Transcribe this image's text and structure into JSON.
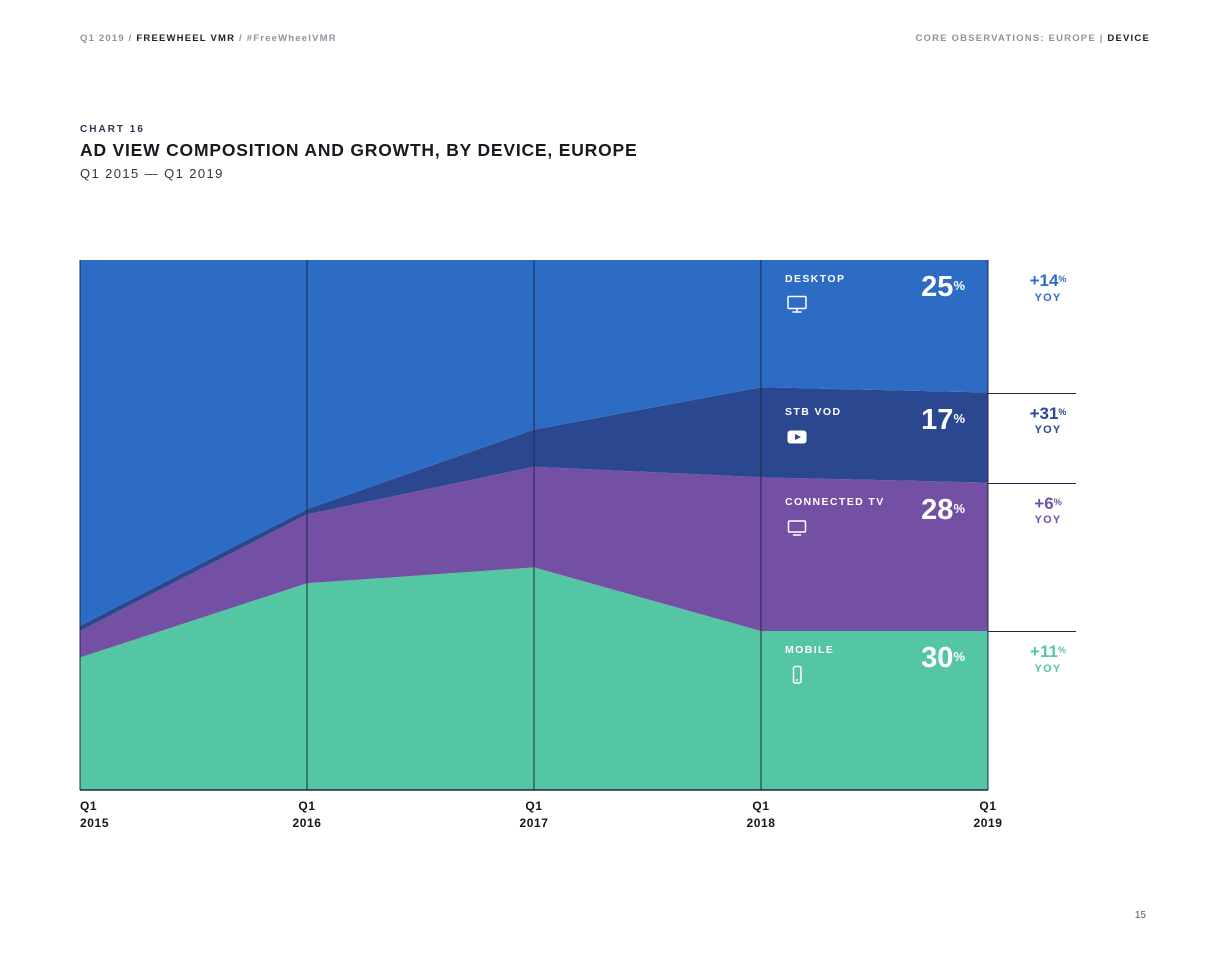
{
  "header": {
    "left": {
      "prefix": "Q1 2019 /",
      "brand": "FREEWHEEL VMR",
      "hashtag": "/ #FreeWheelVMR"
    },
    "right": {
      "section": "CORE OBSERVATIONS: EUROPE |",
      "emphasis": "DEVICE"
    }
  },
  "title_block": {
    "chart_label": "CHART 16",
    "title": "AD VIEW COMPOSITION AND GROWTH, BY DEVICE, EUROPE",
    "subtitle": "Q1 2015 — Q1 2019"
  },
  "chart_data": {
    "type": "area",
    "stacked": true,
    "unit": "%",
    "percent_sign": "%",
    "yoy_caption": "YOY",
    "title": "Ad View Composition and Growth, by Device, Europe",
    "categories": [
      "Q1 2015",
      "Q1 2016",
      "Q1 2017",
      "Q1 2018",
      "Q1 2019"
    ],
    "x_ticks": [
      {
        "quarter": "Q1",
        "year": "2015"
      },
      {
        "quarter": "Q1",
        "year": "2016"
      },
      {
        "quarter": "Q1",
        "year": "2017"
      },
      {
        "quarter": "Q1",
        "year": "2018"
      },
      {
        "quarter": "Q1",
        "year": "2019"
      }
    ],
    "ylim": [
      0,
      100
    ],
    "grid": "vertical",
    "grid_color": "#1c2846",
    "legend_position": "inside-right",
    "series": [
      {
        "name": "DESKTOP",
        "icon": "desktop-icon",
        "color": "#2d6cc4",
        "values": [
          69,
          47,
          32,
          24,
          25
        ],
        "share_label": "25",
        "yoy_label": "+14"
      },
      {
        "name": "STB VOD",
        "icon": "play-icon",
        "color": "#2b4790",
        "values": [
          1,
          1,
          7,
          17,
          17
        ],
        "share_label": "17",
        "yoy_label": "+31"
      },
      {
        "name": "CONNECTED TV",
        "icon": "tv-icon",
        "color": "#7350a4",
        "values": [
          5,
          13,
          19,
          29,
          28
        ],
        "share_label": "28",
        "yoy_label": "+6"
      },
      {
        "name": "MOBILE",
        "icon": "mobile-icon",
        "color": "#54c6a4",
        "values": [
          25,
          39,
          42,
          30,
          30
        ],
        "share_label": "30",
        "yoy_label": "+11"
      }
    ]
  },
  "footer": {
    "page_number": "15"
  }
}
